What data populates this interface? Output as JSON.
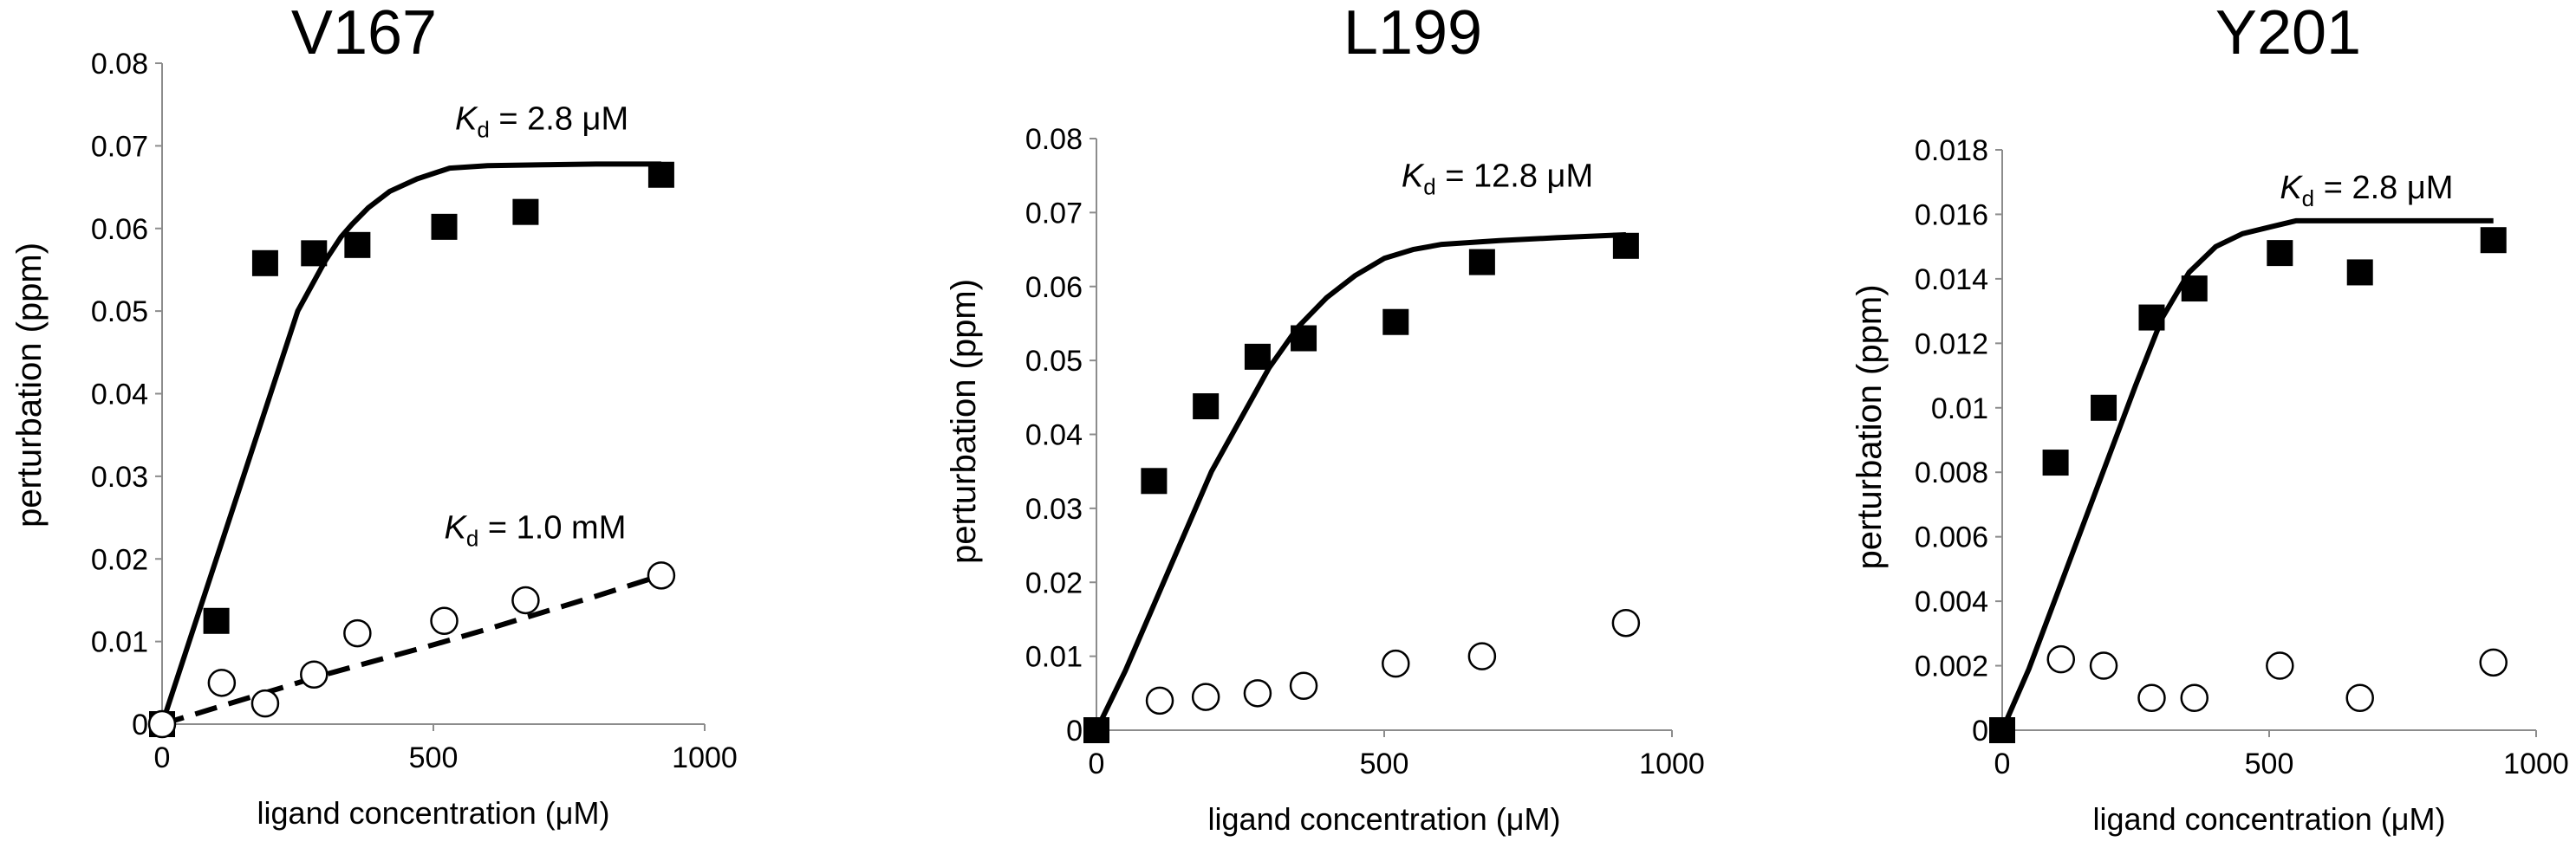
{
  "chart_data": [
    {
      "type": "scatter",
      "title": "V167",
      "xlabel": "ligand concentration (μM)",
      "ylabel": "perturbation (ppm)",
      "xlim": [
        0,
        1000
      ],
      "ylim": [
        0,
        0.08
      ],
      "xticks": [
        0,
        500,
        1000
      ],
      "xtick_labels": [
        "0",
        "500",
        "1000"
      ],
      "yticks": [
        0,
        0.01,
        0.02,
        0.03,
        0.04,
        0.05,
        0.06,
        0.07,
        0.08
      ],
      "ytick_labels": [
        "0",
        "0.01",
        "0.02",
        "0.03",
        "0.04",
        "0.05",
        "0.06",
        "0.07",
        "0.08"
      ],
      "series": [
        {
          "name": "filled squares",
          "marker": "filled-square",
          "x": [
            0,
            100,
            190,
            280,
            360,
            520,
            670,
            920
          ],
          "y": [
            0,
            0.0125,
            0.0558,
            0.057,
            0.058,
            0.0602,
            0.062,
            0.0665
          ]
        },
        {
          "name": "open circles",
          "marker": "open-circle",
          "x": [
            0,
            110,
            190,
            280,
            360,
            520,
            670,
            920
          ],
          "y": [
            0,
            0.005,
            0.0025,
            0.006,
            0.011,
            0.0125,
            0.015,
            0.018
          ]
        }
      ],
      "fits": [
        {
          "style": "solid",
          "x": [
            0,
            50,
            100,
            150,
            200,
            250,
            300,
            330,
            350,
            380,
            420,
            470,
            530,
            600,
            700,
            800,
            920
          ],
          "y": [
            0,
            0.01,
            0.02,
            0.03,
            0.04,
            0.05,
            0.056,
            0.059,
            0.0605,
            0.0625,
            0.0645,
            0.066,
            0.0673,
            0.0676,
            0.0677,
            0.0678,
            0.0678
          ]
        },
        {
          "style": "dashed",
          "x": [
            0,
            100,
            200,
            300,
            400,
            500,
            600,
            700,
            800,
            920
          ],
          "y": [
            0,
            0.002,
            0.004,
            0.006,
            0.0078,
            0.0096,
            0.0115,
            0.0135,
            0.0155,
            0.018
          ]
        }
      ],
      "annotations": [
        {
          "label_k": "K",
          "label_sub": "d",
          "text": " = 2.8 μM",
          "at": [
            540,
            0.072
          ]
        },
        {
          "label_k": "K",
          "label_sub": "d",
          "text": " = 1.0 mM",
          "at": [
            520,
            0.0225
          ]
        }
      ]
    },
    {
      "type": "scatter",
      "title": "L199",
      "xlabel": "ligand concentration (μM)",
      "ylabel": "perturbation (ppm)",
      "xlim": [
        0,
        1000
      ],
      "ylim": [
        0,
        0.08
      ],
      "xticks": [
        0,
        500,
        1000
      ],
      "xtick_labels": [
        "0",
        "500",
        "1000"
      ],
      "yticks": [
        0,
        0.01,
        0.02,
        0.03,
        0.04,
        0.05,
        0.06,
        0.07,
        0.08
      ],
      "ytick_labels": [
        "0",
        "0.01",
        "0.02",
        "0.03",
        "0.04",
        "0.05",
        "0.06",
        "0.07",
        "0.08"
      ],
      "series": [
        {
          "name": "filled squares",
          "marker": "filled-square",
          "x": [
            0,
            100,
            190,
            280,
            360,
            520,
            670,
            920
          ],
          "y": [
            0,
            0.0337,
            0.0438,
            0.0505,
            0.053,
            0.0552,
            0.0633,
            0.0655
          ]
        },
        {
          "name": "open circles",
          "marker": "open-circle",
          "x": [
            110,
            190,
            280,
            360,
            520,
            670,
            920
          ],
          "y": [
            0.004,
            0.0045,
            0.005,
            0.006,
            0.009,
            0.01,
            0.0145
          ]
        }
      ],
      "fits": [
        {
          "style": "solid",
          "x": [
            0,
            50,
            100,
            150,
            200,
            250,
            300,
            350,
            400,
            450,
            500,
            550,
            600,
            700,
            800,
            920
          ],
          "y": [
            0,
            0.008,
            0.017,
            0.026,
            0.035,
            0.042,
            0.049,
            0.0545,
            0.0585,
            0.0615,
            0.0638,
            0.065,
            0.0657,
            0.0662,
            0.0666,
            0.067
          ]
        }
      ],
      "annotations": [
        {
          "label_k": "K",
          "label_sub": "d",
          "text": " = 12.8 μM",
          "at": [
            530,
            0.0735
          ]
        }
      ]
    },
    {
      "type": "scatter",
      "title": "Y201",
      "xlabel": "ligand concentration (μM)",
      "ylabel": "perturbation (ppm)",
      "xlim": [
        0,
        1000
      ],
      "ylim": [
        0,
        0.018
      ],
      "xticks": [
        0,
        500,
        1000
      ],
      "xtick_labels": [
        "0",
        "500",
        "1000"
      ],
      "yticks": [
        0,
        0.002,
        0.004,
        0.006,
        0.008,
        0.01,
        0.012,
        0.014,
        0.016,
        0.018
      ],
      "ytick_labels": [
        "0",
        "0.002",
        "0.004",
        "0.006",
        "0.008",
        "0.01",
        "0.012",
        "0.014",
        "0.016",
        "0.018"
      ],
      "series": [
        {
          "name": "filled squares",
          "marker": "filled-square",
          "x": [
            0,
            100,
            190,
            280,
            360,
            520,
            670,
            920
          ],
          "y": [
            0,
            0.0083,
            0.01,
            0.0128,
            0.0137,
            0.0148,
            0.0142,
            0.0152
          ]
        },
        {
          "name": "open circles",
          "marker": "open-circle",
          "x": [
            110,
            190,
            280,
            360,
            520,
            670,
            920
          ],
          "y": [
            0.0022,
            0.002,
            0.001,
            0.001,
            0.002,
            0.001,
            0.0021
          ]
        }
      ],
      "fits": [
        {
          "style": "solid",
          "x": [
            0,
            50,
            100,
            150,
            200,
            250,
            300,
            350,
            400,
            450,
            500,
            550,
            600,
            700,
            800,
            920
          ],
          "y": [
            0,
            0.0019,
            0.0041,
            0.0063,
            0.0085,
            0.0107,
            0.0128,
            0.0142,
            0.015,
            0.0154,
            0.0156,
            0.0158,
            0.0158,
            0.0158,
            0.0158,
            0.0158
          ]
        }
      ],
      "annotations": [
        {
          "label_k": "K",
          "label_sub": "d",
          "text": " = 2.8 μM",
          "at": [
            520,
            0.0165
          ]
        }
      ]
    }
  ]
}
